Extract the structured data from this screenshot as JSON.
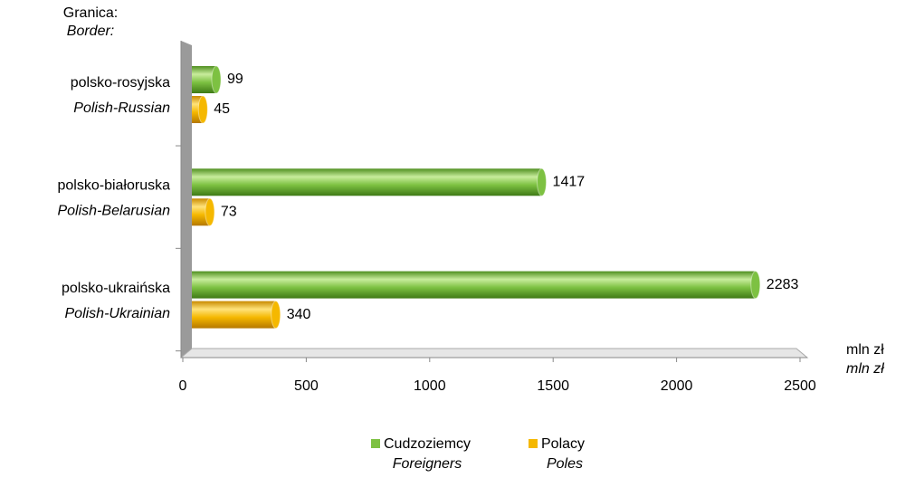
{
  "chart_data": {
    "type": "bar",
    "orientation": "horizontal",
    "y_label": "Granica:",
    "y_label_en": "Border:",
    "x_label": "mln zł",
    "x_label_en": "mln zł",
    "categories": [
      "polsko-rosyjska",
      "polsko-białoruska",
      "polsko-ukraińska"
    ],
    "categories_en": [
      "Polish-Russian",
      "Polish-Belarusian",
      "Polish-Ukrainian"
    ],
    "series": [
      {
        "name": "Cudzoziemcy",
        "name_en": "Foreigners",
        "color": "#7dc142",
        "values": [
          99,
          1417,
          2283
        ]
      },
      {
        "name": "Polacy",
        "name_en": "Poles",
        "color": "#f5b800",
        "values": [
          45,
          73,
          340
        ]
      }
    ],
    "xlim": [
      0,
      2500
    ],
    "xticks": [
      0,
      500,
      1000,
      1500,
      2000,
      2500
    ]
  }
}
